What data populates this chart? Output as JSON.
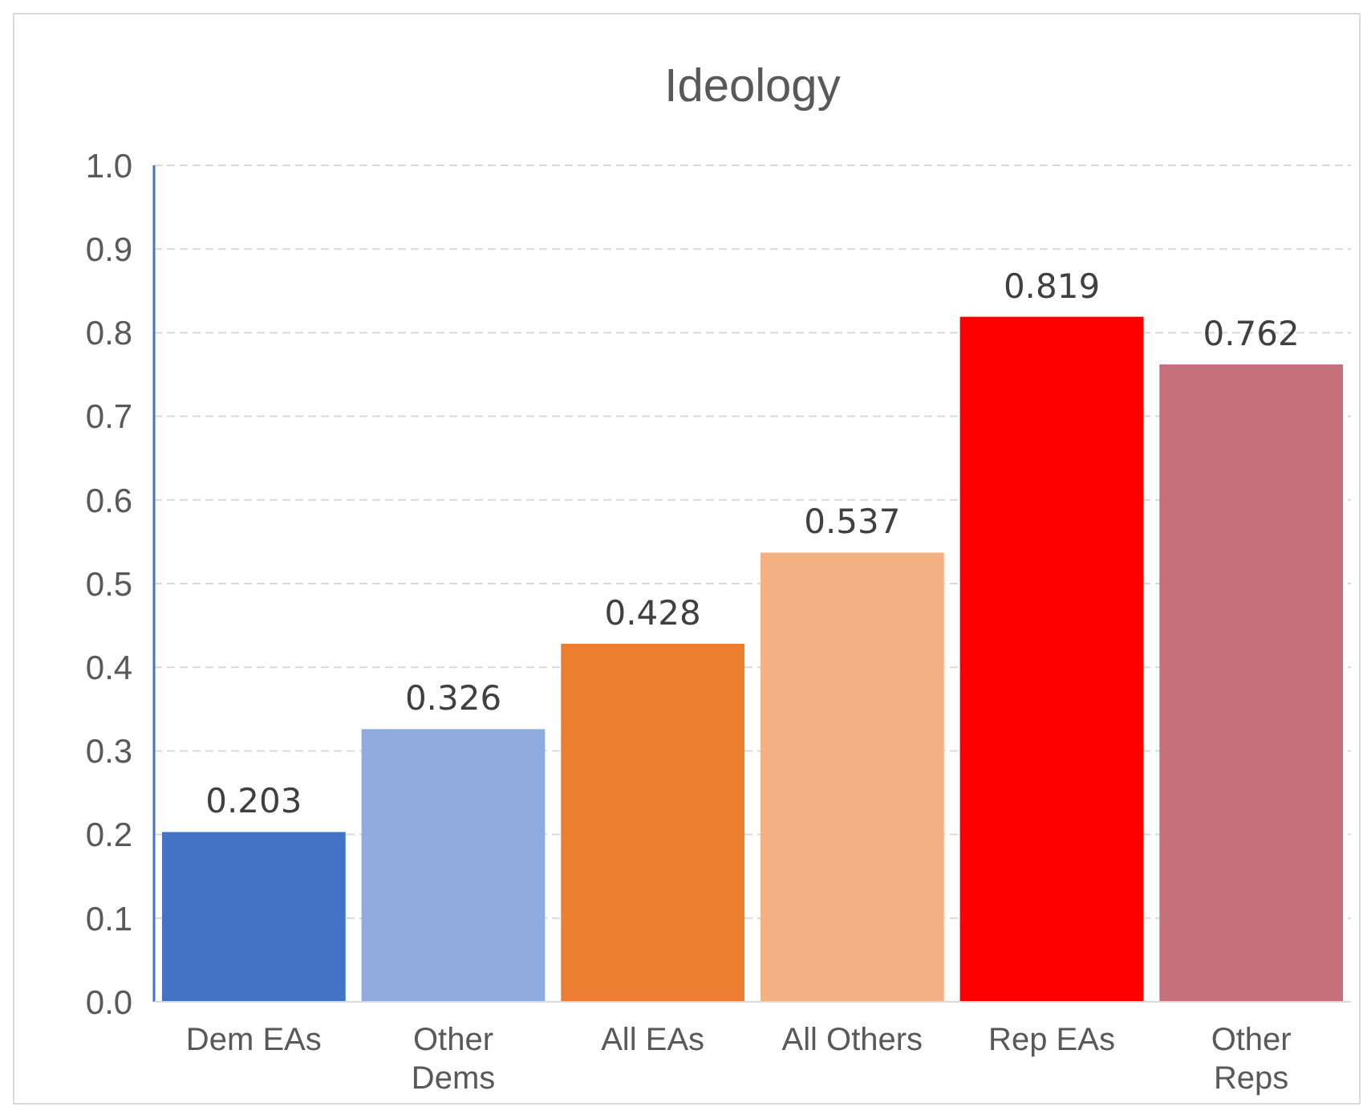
{
  "chart_data": {
    "type": "bar",
    "title": "Ideology",
    "categories": [
      "Dem EAs",
      "Other\nDems",
      "All EAs",
      "All Others",
      "Rep EAs",
      "Other\nReps"
    ],
    "values": [
      0.203,
      0.326,
      0.428,
      0.537,
      0.819,
      0.762
    ],
    "colors": [
      "#4472c4",
      "#8faadc",
      "#ed7d31",
      "#f4b183",
      "#ff0000",
      "#c5707a"
    ],
    "ylim": [
      0,
      1
    ],
    "yticks": [
      "0.0",
      "0.1",
      "0.2",
      "0.3",
      "0.4",
      "0.5",
      "0.6",
      "0.7",
      "0.8",
      "0.9",
      "1.0"
    ],
    "grid": "y",
    "data_labels": true
  }
}
